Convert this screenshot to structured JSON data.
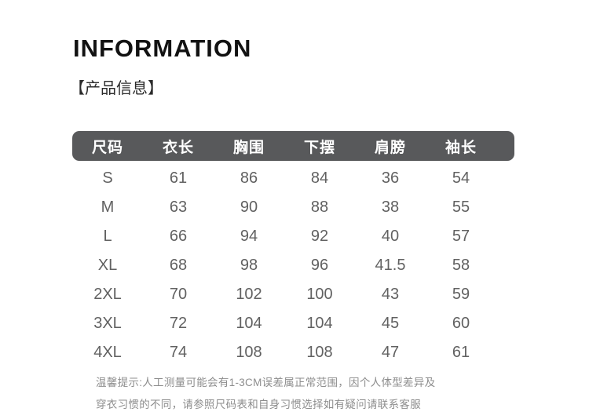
{
  "page": {
    "title": "INFORMATION",
    "section_label": "【产品信息】"
  },
  "size_table": {
    "headers": [
      "尺码",
      "衣长",
      "胸围",
      "下摆",
      "肩膀",
      "袖长"
    ],
    "rows": [
      {
        "size": "S",
        "values": [
          "61",
          "86",
          "84",
          "36",
          "54"
        ]
      },
      {
        "size": "M",
        "values": [
          "63",
          "90",
          "88",
          "38",
          "55"
        ]
      },
      {
        "size": "L",
        "values": [
          "66",
          "94",
          "92",
          "40",
          "57"
        ]
      },
      {
        "size": "XL",
        "values": [
          "68",
          "98",
          "96",
          "41.5",
          "58"
        ]
      },
      {
        "size": "2XL",
        "values": [
          "70",
          "102",
          "100",
          "43",
          "59"
        ]
      },
      {
        "size": "3XL",
        "values": [
          "72",
          "104",
          "104",
          "45",
          "60"
        ]
      },
      {
        "size": "4XL",
        "values": [
          "74",
          "108",
          "108",
          "47",
          "61"
        ]
      }
    ]
  },
  "footer": {
    "line1": "温馨提示:人工测量可能会有1-3CM误差属正常范围，因个人体型差异及",
    "line2": "穿衣习惯的不同，请参照尺码表和自身习惯选择如有疑问请联系客服"
  },
  "colors": {
    "header_bar": "#58595b",
    "header_text": "#ffffff",
    "body_text": "#616161",
    "title_text": "#121212",
    "section_text": "#2b2b2b",
    "footer_text": "#8d8d8d",
    "page_bg": "#ffffff"
  }
}
